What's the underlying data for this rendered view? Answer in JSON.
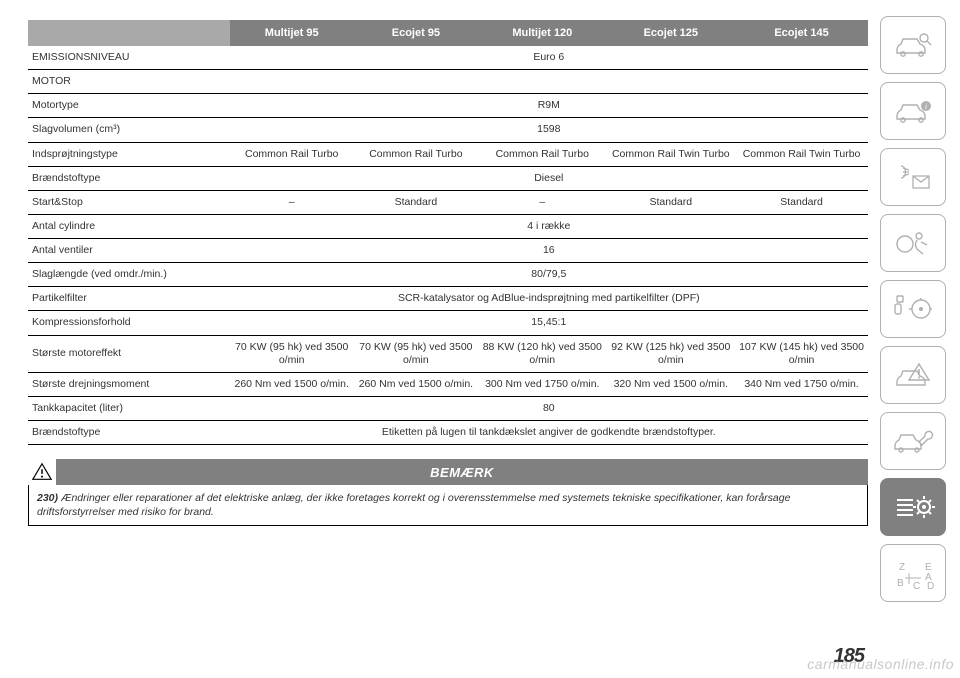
{
  "table": {
    "header_bg": "#808080",
    "header_fg": "#ffffff",
    "columns": [
      "Multijet 95",
      "Ecojet 95",
      "Multijet 120",
      "Ecojet 125",
      "Ecojet 145"
    ],
    "rows": [
      {
        "label": "EMISSIONSNIVEAU",
        "span": "Euro 6"
      },
      {
        "label": "MOTOR",
        "span": ""
      },
      {
        "label": "Motortype",
        "span": "R9M"
      },
      {
        "label": "Slagvolumen (cm³)",
        "span": "1598"
      },
      {
        "label": "Indsprøjtningstype",
        "cells": [
          "Common Rail Turbo",
          "Common Rail Turbo",
          "Common Rail Turbo",
          "Common Rail Twin Turbo",
          "Common Rail Twin Turbo"
        ]
      },
      {
        "label": "Brændstoftype",
        "span": "Diesel"
      },
      {
        "label": "Start&Stop",
        "cells": [
          "–",
          "Standard",
          "–",
          "Standard",
          "Standard"
        ]
      },
      {
        "label": "Antal cylindre",
        "span": "4 i række"
      },
      {
        "label": "Antal ventiler",
        "span": "16"
      },
      {
        "label": "Slaglængde (ved omdr./min.)",
        "span": "80/79,5"
      },
      {
        "label": "Partikelfilter",
        "span": "SCR-katalysator og AdBlue-indsprøjtning med partikelfilter (DPF)"
      },
      {
        "label": "Kompressionsforhold",
        "span": "15,45:1"
      },
      {
        "label": "Største motoreffekt",
        "cells": [
          "70 KW (95 hk) ved 3500 o/min",
          "70 KW (95 hk) ved 3500 o/min",
          "88 KW (120 hk) ved 3500 o/min",
          "92 KW (125 hk) ved 3500 o/min",
          "107 KW (145 hk) ved 3500 o/min"
        ]
      },
      {
        "label": "Største drejningsmoment",
        "cells": [
          "260 Nm ved 1500 o/min.",
          "260 Nm ved 1500 o/min.",
          "300 Nm ved 1750 o/min.",
          "320 Nm ved 1500 o/min.",
          "340 Nm ved 1750 o/min."
        ]
      },
      {
        "label": "Tankkapacitet (liter)",
        "span": "80"
      },
      {
        "label": "Brændstoftype",
        "span": "Etiketten på lugen til tankdækslet angiver de godkendte brændstoftyper."
      }
    ]
  },
  "note": {
    "title": "BEMÆRK",
    "num": "230)",
    "text": "Ændringer eller reparationer af det elektriske anlæg, der ikke foretages korrekt og i overensstemmelse med systemets tekniske specifikationer, kan forårsage driftsforstyrrelser med risiko for brand."
  },
  "page_number": "185",
  "watermark": "carmanualsonline.info",
  "sidebar": {
    "items": [
      {
        "name": "car-search-icon",
        "active": false
      },
      {
        "name": "car-info-icon",
        "active": false
      },
      {
        "name": "lights-mail-icon",
        "active": false
      },
      {
        "name": "airbag-icon",
        "active": false
      },
      {
        "name": "key-steering-icon",
        "active": false
      },
      {
        "name": "car-warning-icon",
        "active": false
      },
      {
        "name": "car-wrench-icon",
        "active": false
      },
      {
        "name": "list-gear-icon",
        "active": true
      },
      {
        "name": "alpha-icon",
        "active": false
      }
    ]
  }
}
